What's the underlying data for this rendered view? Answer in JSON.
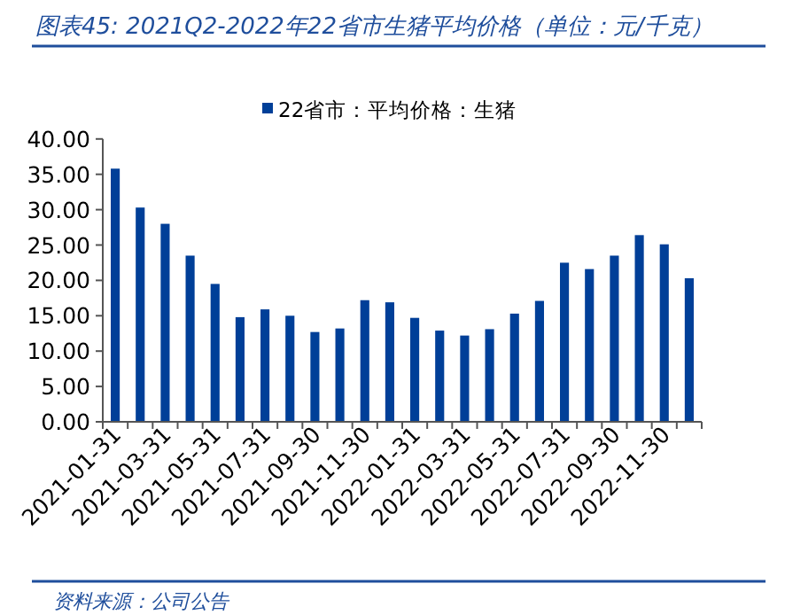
{
  "chart_data": {
    "type": "bar",
    "title": "图表45:  2021Q2-2022年22省市生猪平均价格（单位：元/千克）",
    "categories": [
      "2021-01-31",
      null,
      "2021-03-31",
      null,
      "2021-05-31",
      null,
      "2021-07-31",
      null,
      "2021-09-30",
      null,
      "2021-11-30",
      null,
      "2022-01-31",
      null,
      "2022-03-31",
      null,
      "2022-05-31",
      null,
      "2022-07-31",
      null,
      "2022-09-30",
      null,
      "2022-11-30",
      null
    ],
    "series": [
      {
        "name": "22省市：平均价格：生猪",
        "color": "#003f98",
        "values": [
          35.8,
          30.3,
          28.0,
          23.5,
          19.5,
          14.8,
          15.9,
          15.0,
          12.7,
          13.2,
          17.2,
          16.9,
          14.7,
          12.9,
          12.2,
          13.1,
          15.3,
          17.1,
          22.5,
          21.6,
          23.5,
          26.4,
          25.1,
          20.3
        ]
      }
    ],
    "ylim": [
      0,
      40
    ],
    "yticks": [
      {
        "value": 0,
        "label": "0.00"
      },
      {
        "value": 5,
        "label": "5.00"
      },
      {
        "value": 10,
        "label": "10.00"
      },
      {
        "value": 15,
        "label": "15.00"
      },
      {
        "value": 20,
        "label": "20.00"
      },
      {
        "value": 25,
        "label": "25.00"
      },
      {
        "value": 30,
        "label": "30.00"
      },
      {
        "value": 35,
        "label": "35.00"
      },
      {
        "value": 40,
        "label": "40.00"
      }
    ],
    "legend": "top",
    "annotations": [
      "资料来源：公司公告"
    ]
  }
}
